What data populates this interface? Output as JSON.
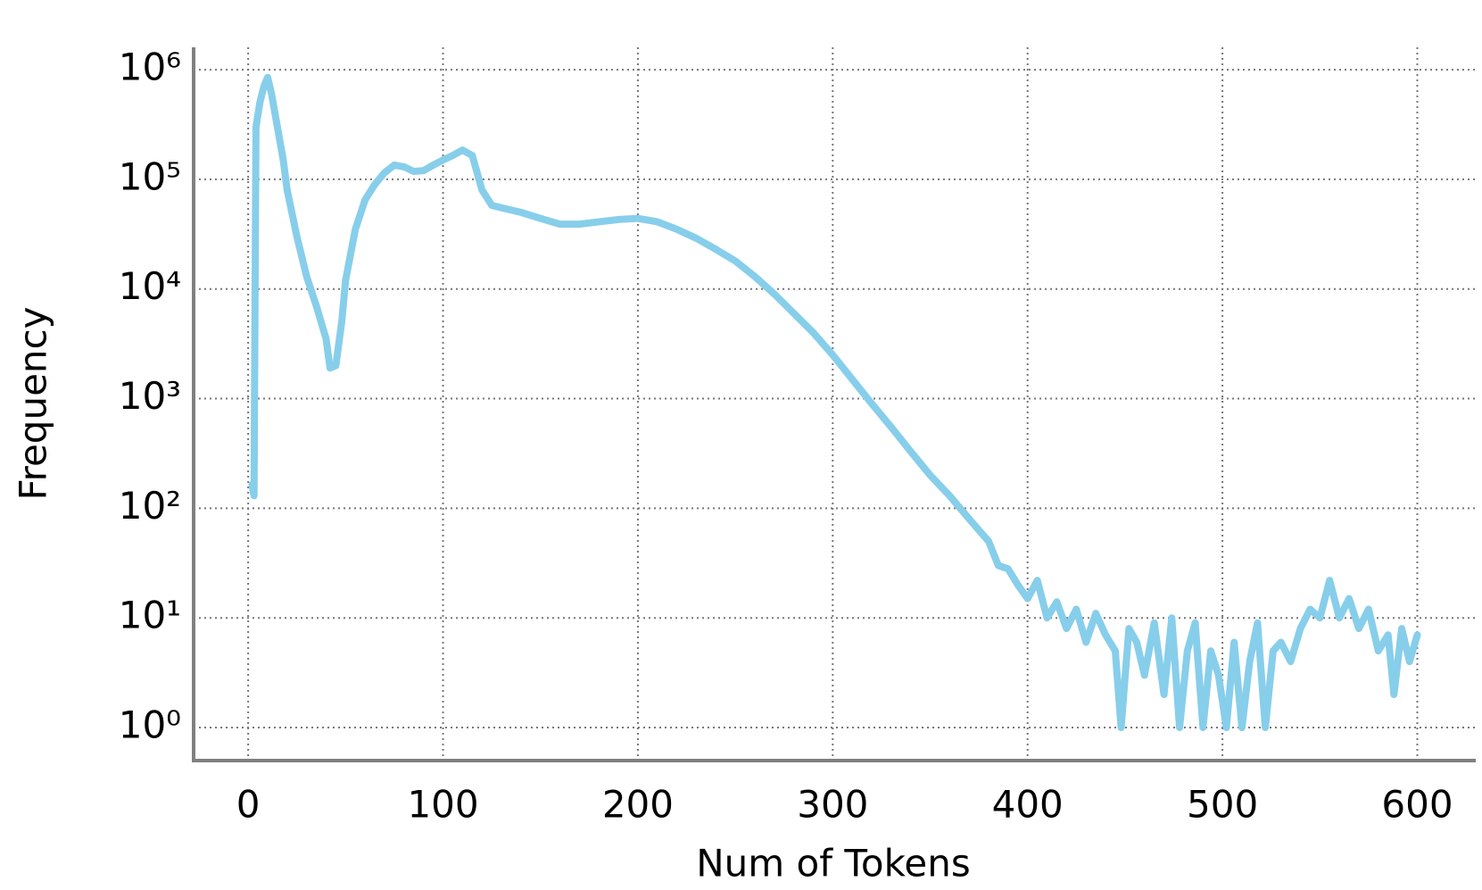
{
  "chart_data": {
    "type": "line",
    "xlabel": "Num of Tokens",
    "ylabel": "Frequency",
    "x": [
      2,
      3,
      4,
      6,
      8,
      10,
      12,
      15,
      18,
      20,
      25,
      30,
      35,
      40,
      42,
      45,
      48,
      50,
      55,
      60,
      65,
      70,
      75,
      80,
      85,
      90,
      95,
      100,
      105,
      110,
      115,
      120,
      125,
      130,
      140,
      150,
      160,
      170,
      180,
      190,
      200,
      210,
      220,
      230,
      240,
      250,
      260,
      270,
      280,
      290,
      300,
      310,
      320,
      330,
      340,
      350,
      360,
      370,
      380,
      385,
      390,
      395,
      400,
      405,
      410,
      415,
      420,
      425,
      430,
      435,
      440,
      445,
      448,
      452,
      456,
      460,
      465,
      470,
      474,
      478,
      482,
      486,
      490,
      494,
      498,
      502,
      506,
      510,
      514,
      518,
      522,
      526,
      530,
      535,
      540,
      545,
      550,
      555,
      560,
      565,
      570,
      575,
      580,
      585,
      588,
      592,
      596,
      600
    ],
    "series": [
      {
        "name": "Frequency",
        "color": "#87ceeb",
        "values": [
          165,
          130,
          300000,
          500000,
          700000,
          850000,
          600000,
          300000,
          150000,
          80000,
          30000,
          13000,
          7000,
          3500,
          1900,
          2000,
          5000,
          12000,
          35000,
          65000,
          90000,
          115000,
          135000,
          130000,
          118000,
          120000,
          135000,
          150000,
          165000,
          185000,
          165000,
          80000,
          58000,
          55000,
          50000,
          44000,
          39000,
          39000,
          41000,
          43000,
          44000,
          41000,
          35000,
          29000,
          23000,
          18000,
          13000,
          9000,
          6000,
          4000,
          2500,
          1500,
          900,
          550,
          330,
          200,
          130,
          80,
          50,
          30,
          28,
          20,
          15,
          22,
          10,
          14,
          8,
          12,
          6,
          11,
          7,
          5,
          1,
          8,
          6,
          3,
          9,
          2,
          10,
          1,
          5,
          9,
          1,
          5,
          3,
          1,
          6,
          1,
          4,
          9,
          1,
          5,
          6,
          4,
          8,
          12,
          10,
          22,
          10,
          15,
          8,
          12,
          5,
          7,
          2,
          8,
          4,
          7
        ]
      }
    ],
    "xlim": [
      -28,
      630
    ],
    "xticks": [
      0,
      100,
      200,
      300,
      400,
      500,
      600
    ],
    "yscale": "log",
    "ylim": [
      0.5,
      1600000
    ],
    "yticks": [
      {
        "value": 1,
        "label": "10⁰"
      },
      {
        "value": 10,
        "label": "10¹"
      },
      {
        "value": 100,
        "label": "10²"
      },
      {
        "value": 1000,
        "label": "10³"
      },
      {
        "value": 10000,
        "label": "10⁴"
      },
      {
        "value": 100000,
        "label": "10⁵"
      },
      {
        "value": 1000000,
        "label": "10⁶"
      }
    ],
    "grid": true
  }
}
